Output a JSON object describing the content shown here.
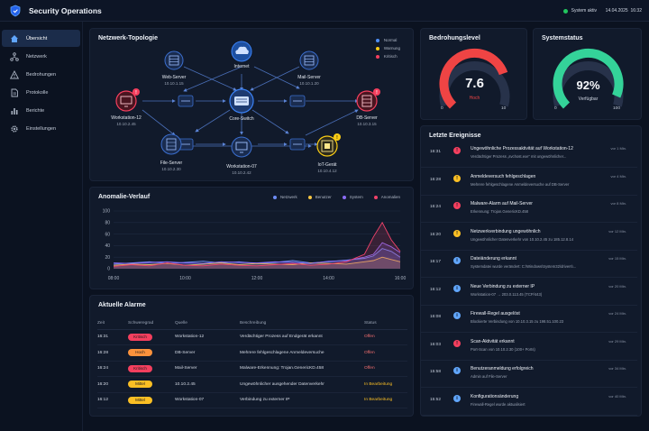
{
  "header": {
    "title": "Security Operations",
    "status_label": "System aktiv",
    "status_color": "#22c55e",
    "date": "14.04.2025",
    "time": "16:32"
  },
  "sidebar": {
    "items": [
      {
        "label": "Übersicht",
        "icon": "home-icon",
        "active": true
      },
      {
        "label": "Netzwerk",
        "icon": "network-icon",
        "active": false
      },
      {
        "label": "Bedrohungen",
        "icon": "warning-icon",
        "active": false
      },
      {
        "label": "Protokolle",
        "icon": "document-icon",
        "active": false
      },
      {
        "label": "Berichte",
        "icon": "bar-chart-icon",
        "active": false
      },
      {
        "label": "Einstellungen",
        "icon": "gear-icon",
        "active": false
      }
    ]
  },
  "topology": {
    "title": "Netzwerk-Topologie",
    "legend": [
      {
        "label": "Normal",
        "color": "#4f8ff7"
      },
      {
        "label": "Warnung",
        "color": "#facc15"
      },
      {
        "label": "Kritisch",
        "color": "#f43f5e"
      }
    ],
    "nodes": [
      {
        "name": "Internet",
        "ip": "",
        "status": "normal"
      },
      {
        "name": "Web-Server",
        "ip": "10.10.1.15",
        "status": "normal"
      },
      {
        "name": "Mail-Server",
        "ip": "10.10.1.20",
        "status": "normal"
      },
      {
        "name": "Core-Switch",
        "ip": "",
        "status": "normal"
      },
      {
        "name": "Workstation-12",
        "ip": "10.10.2.45",
        "status": "critical",
        "badge": "!"
      },
      {
        "name": "DB-Server",
        "ip": "10.10.3.15",
        "status": "critical",
        "badge": "!"
      },
      {
        "name": "File-Server",
        "ip": "10.10.2.30",
        "status": "normal"
      },
      {
        "name": "Workstation-07",
        "ip": "10.10.2.42",
        "status": "normal"
      },
      {
        "name": "IoT-Gerät",
        "ip": "10.10.4.12",
        "status": "warning",
        "badge": "!"
      }
    ]
  },
  "anomaly": {
    "title": "Anomalie-Verlauf",
    "legend": [
      {
        "label": "Netzwerk",
        "color": "#6d8cf5"
      },
      {
        "label": "Benutzer",
        "color": "#f5c542"
      },
      {
        "label": "System",
        "color": "#8b6cf6"
      },
      {
        "label": "Anomalien",
        "color": "#f0426a"
      }
    ]
  },
  "chart_data": {
    "type": "area",
    "x_ticks": [
      "08:00",
      "10:00",
      "12:00",
      "14:00",
      "16:00"
    ],
    "y_ticks": [
      0,
      20,
      40,
      60,
      80,
      100
    ],
    "ylim": [
      0,
      100
    ],
    "x_hours": [
      8,
      8.5,
      9,
      9.5,
      10,
      10.5,
      11,
      11.5,
      12,
      12.5,
      13,
      13.5,
      14,
      14.5,
      15,
      15.25,
      15.5,
      15.75,
      16
    ],
    "series": [
      {
        "name": "Netzwerk",
        "values": [
          8,
          10,
          12,
          9,
          11,
          13,
          10,
          12,
          9,
          11,
          14,
          10,
          12,
          15,
          18,
          22,
          35,
          30,
          20
        ]
      },
      {
        "name": "Benutzer",
        "values": [
          6,
          8,
          7,
          9,
          6,
          8,
          10,
          7,
          9,
          8,
          7,
          10,
          9,
          8,
          12,
          14,
          20,
          16,
          12
        ]
      },
      {
        "name": "System",
        "values": [
          10,
          9,
          11,
          12,
          10,
          9,
          12,
          11,
          10,
          12,
          11,
          9,
          13,
          14,
          20,
          25,
          45,
          38,
          28
        ]
      },
      {
        "name": "Anomalien",
        "values": [
          4,
          7,
          5,
          10,
          6,
          5,
          8,
          6,
          5,
          7,
          9,
          6,
          8,
          12,
          25,
          55,
          80,
          50,
          30
        ]
      }
    ]
  },
  "threat": {
    "title": "Bedrohungslevel",
    "value": "7.6",
    "fraction": 0.76,
    "label": "Hoch",
    "min": "0",
    "max": "10",
    "color": "#ef4444"
  },
  "system": {
    "title": "Systemstatus",
    "value": "92%",
    "fraction": 0.92,
    "label": "Verfügbar",
    "min": "0",
    "max": "100",
    "color": "#34d399"
  },
  "alarms": {
    "title": "Aktuelle Alarme",
    "columns": [
      "Zeit",
      "Schweregrad",
      "Quelle",
      "Beschreibung",
      "Status"
    ],
    "rows": [
      {
        "time": "16:31",
        "severity": "Kritisch",
        "sev_color": "#f43f5e",
        "source": "Workstation-12",
        "desc": "Verdächtiger Prozess auf Endgerät erkannt",
        "status": "Offen",
        "status_color": "#f87171"
      },
      {
        "time": "16:28",
        "severity": "Hoch",
        "sev_color": "#fb923c",
        "source": "DB-Server",
        "desc": "Mehrere fehlgeschlagene Anmeldeversuche",
        "status": "Offen",
        "status_color": "#f87171"
      },
      {
        "time": "16:24",
        "severity": "Kritisch",
        "sev_color": "#f43f5e",
        "source": "Mail-Server",
        "desc": "Malware-Erkennung: Trojan.GenericKD.458",
        "status": "Offen",
        "status_color": "#f87171"
      },
      {
        "time": "16:20",
        "severity": "Mittel",
        "sev_color": "#fbbf24",
        "source": "10.10.2.45",
        "desc": "Ungewöhnlicher ausgehender Datenverkehr",
        "status": "In Bearbeitung",
        "status_color": "#fbbf24"
      },
      {
        "time": "16:12",
        "severity": "Mittel",
        "sev_color": "#fbbf24",
        "source": "Workstation-07",
        "desc": "Verbindung zu externer IP",
        "status": "In Bearbeitung",
        "status_color": "#fbbf24"
      }
    ]
  },
  "events": {
    "title": "Letzte Ereignisse",
    "items": [
      {
        "time": "16:31",
        "icon": "alert-icon",
        "glyph": "!",
        "color": "#f43f5e",
        "title": "Ungewöhnliche Prozessaktivität auf Workstation-12",
        "desc": "Verdächtiger Prozess „svchost.exe“ mit ungewöhnlicher...",
        "ago": "vor 1 Min."
      },
      {
        "time": "16:28",
        "icon": "key-icon",
        "glyph": "!",
        "color": "#fbbf24",
        "title": "Anmeldeversuch fehlgeschlagen",
        "desc": "Mehrere fehlgeschlagene Anmeldeversuche auf DB-Server",
        "ago": "vor 4 Min."
      },
      {
        "time": "16:24",
        "icon": "alert-icon",
        "glyph": "!",
        "color": "#f43f5e",
        "title": "Malware-Alarm auf Mail-Server",
        "desc": "Erkennung: Trojan.GenericKD.458",
        "ago": "vor 8 Min."
      },
      {
        "time": "16:20",
        "icon": "network-icon",
        "glyph": "!",
        "color": "#fbbf24",
        "title": "Netzwerkverbindung ungewöhnlich",
        "desc": "Ungewöhnlicher Datenverkehr von 10.10.2.45 zu 185.12.8.14",
        "ago": "vor 12 Min."
      },
      {
        "time": "16:17",
        "icon": "info-icon",
        "glyph": "i",
        "color": "#60a5fa",
        "title": "Dateiänderung erkannt",
        "desc": "Systemdatei wurde verändert: C:\\Windows\\System32\\drivers\\...",
        "ago": "vor 15 Min."
      },
      {
        "time": "16:12",
        "icon": "info-icon",
        "glyph": "i",
        "color": "#60a5fa",
        "title": "Neue Verbindung zu externer IP",
        "desc": "Workstation-07 → 203.0.113.45 (TCP/443)",
        "ago": "vor 20 Min."
      },
      {
        "time": "16:08",
        "icon": "info-icon",
        "glyph": "i",
        "color": "#60a5fa",
        "title": "Firewall-Regel ausgelöst",
        "desc": "Blockierte Verbindung von 10.10.3.15 zu 198.51.100.23",
        "ago": "vor 24 Min."
      },
      {
        "time": "16:03",
        "icon": "alert-icon",
        "glyph": "!",
        "color": "#f43f5e",
        "title": "Scan-Aktivität erkannt",
        "desc": "Port-Scan von 10.10.2.30 (100+ Ports)",
        "ago": "vor 29 Min."
      },
      {
        "time": "15:58",
        "icon": "info-icon",
        "glyph": "i",
        "color": "#60a5fa",
        "title": "Benutzeranmeldung erfolgreich",
        "desc": "Admin auf File-Server",
        "ago": "vor 34 Min."
      },
      {
        "time": "15:52",
        "icon": "info-icon",
        "glyph": "i",
        "color": "#60a5fa",
        "title": "Konfigurationsänderung",
        "desc": "Firewall-Regel wurde aktualisiert",
        "ago": "vor 40 Min."
      }
    ]
  }
}
